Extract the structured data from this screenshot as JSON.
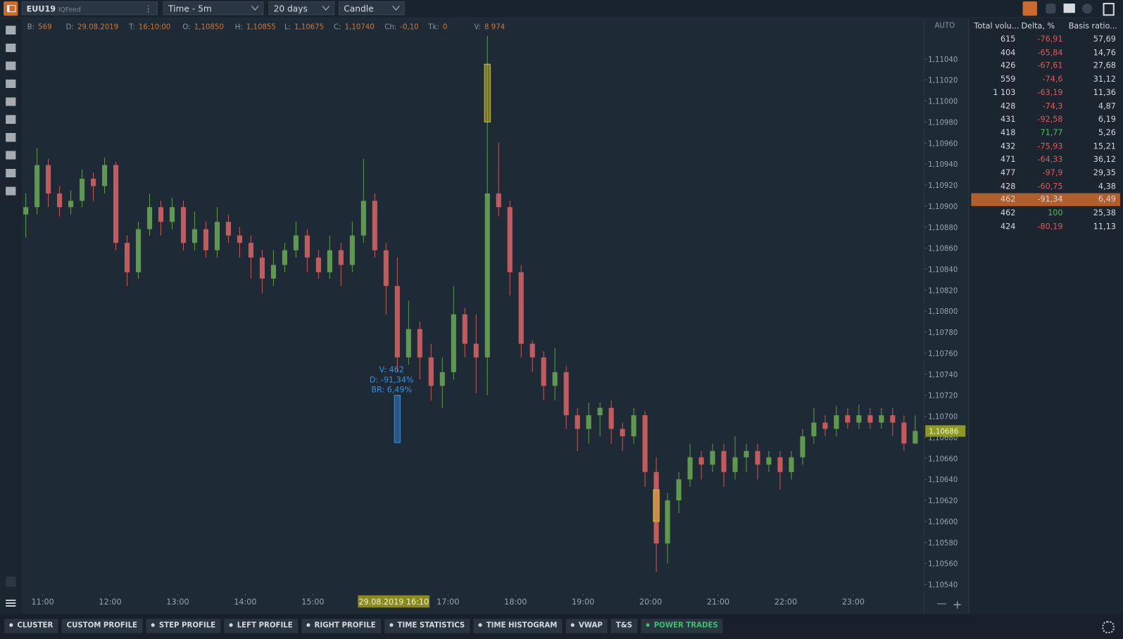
{
  "toolbar": {
    "symbol": "EUU19",
    "feed": "IQFeed",
    "timeframe": "Time - 5m",
    "period": "20 days",
    "chart_style": "Candle"
  },
  "info_bar": [
    {
      "label": "B:",
      "value": "569"
    },
    {
      "label": "D:",
      "value": "29.08.2019"
    },
    {
      "label": "T:",
      "value": "16:10:00"
    },
    {
      "label": "O:",
      "value": "1,10850"
    },
    {
      "label": "H:",
      "value": "1,10855"
    },
    {
      "label": "L:",
      "value": "1,10675"
    },
    {
      "label": "C:",
      "value": "1,10740"
    },
    {
      "label": "Ch:",
      "value": "-0,10"
    },
    {
      "label": "Tk:",
      "value": "0"
    },
    {
      "label": "V:",
      "value": "8 974"
    }
  ],
  "chart_data": {
    "type": "candlestick",
    "scale_mode": "AUTO",
    "open": [
      1.10892,
      1.10899,
      1.10939,
      1.10912,
      1.10899,
      1.10905,
      1.10926,
      1.10919,
      1.10939,
      1.10865,
      1.10837,
      1.10878,
      1.10899,
      1.10885,
      1.10899,
      1.10865,
      1.10878,
      1.10858,
      1.10885,
      1.10872,
      1.10865,
      1.10851,
      1.10831,
      1.10844,
      1.10858,
      1.10872,
      1.10851,
      1.10837,
      1.10858,
      1.10844,
      1.10872,
      1.10905,
      1.10858,
      1.10824,
      1.10756,
      1.10783,
      1.10756,
      1.10729,
      1.10742,
      1.10797,
      1.10769,
      1.10756,
      1.10912,
      1.10899,
      1.10837,
      1.10769,
      1.10756,
      1.10729,
      1.10742,
      1.10701,
      1.10688,
      1.10701,
      1.10708,
      1.10688,
      1.10681,
      1.10701,
      1.10647,
      1.10579,
      1.1062,
      1.1064,
      1.10661,
      1.10654,
      1.10667,
      1.10647,
      1.10661,
      1.10667,
      1.10654,
      1.10661,
      1.10647,
      1.10661,
      1.10681,
      1.10694,
      1.10688,
      1.10701,
      1.10694,
      1.10701,
      1.10694,
      1.10701,
      1.10694,
      1.10674
    ],
    "high": [
      1.10912,
      1.10955,
      1.10945,
      1.10919,
      1.10915,
      1.10935,
      1.10932,
      1.10946,
      1.10942,
      1.10872,
      1.10885,
      1.10912,
      1.10905,
      1.10908,
      1.10905,
      1.10895,
      1.10885,
      1.10899,
      1.10892,
      1.1088,
      1.10872,
      1.10858,
      1.10858,
      1.10865,
      1.10885,
      1.10878,
      1.10858,
      1.10872,
      1.10865,
      1.10885,
      1.10945,
      1.10912,
      1.10865,
      1.10851,
      1.1081,
      1.1079,
      1.10769,
      1.10756,
      1.10824,
      1.10803,
      1.10797,
      1.11062,
      1.1096,
      1.10905,
      1.10844,
      1.10772,
      1.10762,
      1.10765,
      1.10748,
      1.10708,
      1.10713,
      1.10713,
      1.10715,
      1.10694,
      1.10708,
      1.10705,
      1.10661,
      1.10627,
      1.10647,
      1.10674,
      1.10667,
      1.10674,
      1.10674,
      1.10681,
      1.10674,
      1.10674,
      1.10667,
      1.10667,
      1.10667,
      1.10688,
      1.10708,
      1.10701,
      1.1071,
      1.10708,
      1.10711,
      1.10708,
      1.10708,
      1.10708,
      1.10701,
      1.10701
    ],
    "low": [
      1.1087,
      1.10892,
      1.10899,
      1.1089,
      1.10892,
      1.10899,
      1.10905,
      1.10912,
      1.10858,
      1.10824,
      1.10831,
      1.10872,
      1.10872,
      1.10878,
      1.10858,
      1.10858,
      1.10851,
      1.10851,
      1.10865,
      1.10851,
      1.10831,
      1.10817,
      1.10824,
      1.10837,
      1.10851,
      1.10837,
      1.10831,
      1.10831,
      1.10824,
      1.10837,
      1.10865,
      1.10851,
      1.10797,
      1.10742,
      1.10749,
      1.10735,
      1.10715,
      1.10708,
      1.10735,
      1.10756,
      1.10722,
      1.1072,
      1.1089,
      1.10815,
      1.10756,
      1.10742,
      1.10715,
      1.10715,
      1.10688,
      1.10667,
      1.10674,
      1.10681,
      1.10674,
      1.10667,
      1.10674,
      1.10633,
      1.10552,
      1.1056,
      1.10608,
      1.10633,
      1.1064,
      1.10647,
      1.10633,
      1.1064,
      1.10647,
      1.1064,
      1.10647,
      1.1063,
      1.1064,
      1.10654,
      1.10674,
      1.10681,
      1.10681,
      1.10688,
      1.10688,
      1.10688,
      1.10688,
      1.10681,
      1.10667,
      1.10674
    ],
    "close": [
      1.10899,
      1.10939,
      1.10912,
      1.10899,
      1.10905,
      1.10926,
      1.10919,
      1.10939,
      1.10865,
      1.10837,
      1.10878,
      1.10899,
      1.10885,
      1.10899,
      1.10865,
      1.10878,
      1.10858,
      1.10885,
      1.10872,
      1.10865,
      1.10851,
      1.10831,
      1.10844,
      1.10858,
      1.10872,
      1.10851,
      1.10837,
      1.10858,
      1.10844,
      1.10872,
      1.10905,
      1.10858,
      1.10824,
      1.10756,
      1.10783,
      1.10756,
      1.10729,
      1.10742,
      1.10797,
      1.10769,
      1.10756,
      1.10912,
      1.10899,
      1.10837,
      1.10769,
      1.10756,
      1.10729,
      1.10742,
      1.10701,
      1.10688,
      1.10701,
      1.10708,
      1.10688,
      1.10681,
      1.10701,
      1.10647,
      1.10579,
      1.1062,
      1.1064,
      1.10661,
      1.10654,
      1.10667,
      1.10647,
      1.10661,
      1.10667,
      1.10654,
      1.10661,
      1.10647,
      1.10661,
      1.10681,
      1.10694,
      1.10688,
      1.10701,
      1.10694,
      1.10701,
      1.10694,
      1.10701,
      1.10694,
      1.10674,
      1.10686
    ],
    "up_color": "#5f9a4c",
    "down_color": "#c65a5a",
    "ylim": [
      1.10531,
      1.11077
    ],
    "yticks": [
      {
        "value": 1.1054,
        "label": "1,10540"
      },
      {
        "value": 1.1056,
        "label": "1,10560"
      },
      {
        "value": 1.1058,
        "label": "1,10580"
      },
      {
        "value": 1.106,
        "label": "1,10600"
      },
      {
        "value": 1.1062,
        "label": "1,10620"
      },
      {
        "value": 1.1064,
        "label": "1,10640"
      },
      {
        "value": 1.1066,
        "label": "1,10660"
      },
      {
        "value": 1.1068,
        "label": "1,10680"
      },
      {
        "value": 1.107,
        "label": "1,10700"
      },
      {
        "value": 1.1072,
        "label": "1,10720"
      },
      {
        "value": 1.1074,
        "label": "1,10740"
      },
      {
        "value": 1.1076,
        "label": "1,10760"
      },
      {
        "value": 1.1078,
        "label": "1,10780"
      },
      {
        "value": 1.108,
        "label": "1,10800"
      },
      {
        "value": 1.1082,
        "label": "1,10820"
      },
      {
        "value": 1.1084,
        "label": "1,10840"
      },
      {
        "value": 1.1086,
        "label": "1,10860"
      },
      {
        "value": 1.1088,
        "label": "1,10880"
      },
      {
        "value": 1.109,
        "label": "1,10900"
      },
      {
        "value": 1.1092,
        "label": "1,10920"
      },
      {
        "value": 1.1094,
        "label": "1,10940"
      },
      {
        "value": 1.1096,
        "label": "1,10960"
      },
      {
        "value": 1.1098,
        "label": "1,10980"
      },
      {
        "value": 1.11,
        "label": "1,11000"
      },
      {
        "value": 1.1102,
        "label": "1,11020"
      },
      {
        "value": 1.1104,
        "label": "1,11040"
      }
    ],
    "xticks": [
      {
        "value": 1.5,
        "label": "11:00"
      },
      {
        "value": 7.5,
        "label": "12:00"
      },
      {
        "value": 13.5,
        "label": "13:00"
      },
      {
        "value": 19.5,
        "label": "14:00"
      },
      {
        "value": 25.5,
        "label": "15:00"
      },
      {
        "value": 37.5,
        "label": "17:00"
      },
      {
        "value": 43.5,
        "label": "18:00"
      },
      {
        "value": 49.5,
        "label": "19:00"
      },
      {
        "value": 55.5,
        "label": "20:00"
      },
      {
        "value": 61.5,
        "label": "21:00"
      },
      {
        "value": 67.5,
        "label": "22:00"
      },
      {
        "value": 73.5,
        "label": "23:00"
      }
    ],
    "grid": false,
    "last_price": {
      "value": 1.10686,
      "label": "1,10686"
    },
    "cursor_label": "29.08.2019 16:10",
    "power_trades": [
      {
        "index": 41,
        "low": 1.1098,
        "high": 1.11035,
        "color": "#d6c43a"
      },
      {
        "index": 56,
        "low": 1.106,
        "high": 1.1063,
        "color": "#d6c43a"
      },
      {
        "index": 33,
        "low": 1.10675,
        "high": 1.1072,
        "color": "#3d8fd6",
        "lines": [
          "V: 462",
          "D: -91,34%",
          "BR: 6,49%"
        ]
      }
    ]
  },
  "table": {
    "header": [
      "Total volu...",
      "Delta, %",
      "Basis ratio..."
    ],
    "highlight_row": 12,
    "rows": [
      [
        "615",
        "-76,91",
        "57,69"
      ],
      [
        "404",
        "-65,84",
        "14,76"
      ],
      [
        "426",
        "-67,61",
        "27,68"
      ],
      [
        "559",
        "-74,6",
        "31,12"
      ],
      [
        "1 103",
        "-63,19",
        "11,36"
      ],
      [
        "428",
        "-74,3",
        "4,87"
      ],
      [
        "431",
        "-92,58",
        "6,19"
      ],
      [
        "418",
        "71,77",
        "5,26"
      ],
      [
        "432",
        "-75,93",
        "15,21"
      ],
      [
        "471",
        "-64,33",
        "36,12"
      ],
      [
        "477",
        "-97,9",
        "29,35"
      ],
      [
        "428",
        "-60,75",
        "4,38"
      ],
      [
        "462",
        "-91,34",
        "6,49"
      ],
      [
        "462",
        "100",
        "25,38"
      ],
      [
        "424",
        "-80,19",
        "11,13"
      ]
    ]
  },
  "tabs": [
    {
      "label": "CLUSTER",
      "dot": true
    },
    {
      "label": "CUSTOM PROFILE",
      "dot": false
    },
    {
      "label": "STEP PROFILE",
      "dot": true
    },
    {
      "label": "LEFT PROFILE",
      "dot": true
    },
    {
      "label": "RIGHT PROFILE",
      "dot": true
    },
    {
      "label": "TIME STATISTICS",
      "dot": true
    },
    {
      "label": "TIME HISTOGRAM",
      "dot": true
    },
    {
      "label": "VWAP",
      "dot": true
    },
    {
      "label": "T&S",
      "dot": false
    },
    {
      "label": "POWER TRADES",
      "dot": true,
      "color": "#3fbf6f"
    }
  ]
}
